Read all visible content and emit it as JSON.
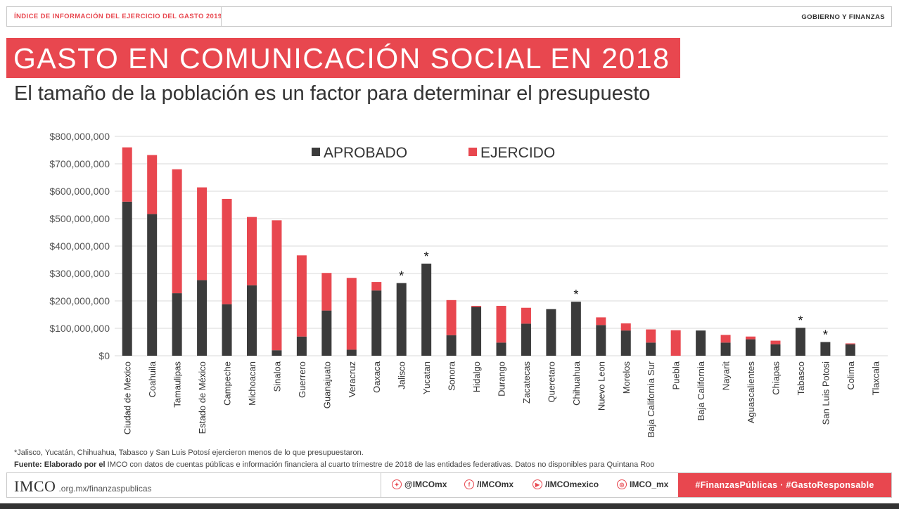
{
  "header": {
    "left": "ÍNDICE DE INFORMACIÓN DEL EJERCICIO DEL GASTO 2019",
    "right": "GOBIERNO Y FINANZAS"
  },
  "title": "GASTO EN COMUNICACIÓN SOCIAL EN 2018",
  "subtitle": "El tamaño de la población es un factor para determinar el presupuesto",
  "chart_data": {
    "type": "bar",
    "stacked": true,
    "categories": [
      "Ciudad de Mexico",
      "Coahuila",
      "Tamaulipas",
      "Estado de México",
      "Campeche",
      "Michoacan",
      "Sinaloa",
      "Guerrero",
      "Guanajuato",
      "Veracruz",
      "Oaxaca",
      "Jalisco",
      "Yucatan",
      "Sonora",
      "Hidalgo",
      "Durango",
      "Zacatecas",
      "Queretaro",
      "Chihuahua",
      "Nuevo Leon",
      "Morelos",
      "Baja California Sur",
      "Puebla",
      "Baja California",
      "Nayarit",
      "Aguascalientes",
      "Chiapas",
      "Tabasco",
      "San Luis Potosi",
      "Colima",
      "Tlaxcala"
    ],
    "series": [
      {
        "name": "APROBADO",
        "color": "#3b3b3b",
        "values": [
          562000000,
          517000000,
          228000000,
          276000000,
          188000000,
          257000000,
          20000000,
          70000000,
          165000000,
          22000000,
          238000000,
          265000000,
          336000000,
          75000000,
          178000000,
          48000000,
          117000000,
          170000000,
          197000000,
          112000000,
          92000000,
          48000000,
          0,
          92000000,
          48000000,
          60000000,
          42000000,
          102000000,
          50000000,
          42000000,
          0
        ]
      },
      {
        "name": "EJERCIDO",
        "color": "#e8474f",
        "values": [
          198000000,
          215000000,
          452000000,
          338000000,
          384000000,
          249000000,
          474000000,
          296000000,
          137000000,
          262000000,
          31000000,
          0,
          0,
          128000000,
          4000000,
          134000000,
          58000000,
          0,
          0,
          28000000,
          26000000,
          48000000,
          93000000,
          0,
          28000000,
          10000000,
          13000000,
          0,
          0,
          3000000,
          0
        ]
      }
    ],
    "asterisks": [
      "Jalisco",
      "Yucatan",
      "Chihuahua",
      "Tabasco",
      "San Luis Potosi"
    ],
    "asterisk_symbol": "*",
    "ylim": [
      0,
      800000000
    ],
    "yticks": [
      "$0",
      "$100,000,000",
      "$200,000,000",
      "$300,000,000",
      "$400,000,000",
      "$500,000,000",
      "$600,000,000",
      "$700,000,000",
      "$800,000,000"
    ],
    "legend_position": "top",
    "grid": true
  },
  "footnote": "*Jalisco, Yucatán, Chihuahua, Tabasco y San Luis Potosí ejercieron menos de lo que presupuestaron.",
  "source": {
    "label": "Fuente: Elaborado por el",
    "text": " IMCO con datos de cuentas públicas e información financiera al cuarto trimestre de 2018 de las entidades federativas. Datos no disponibles para Quintana Roo"
  },
  "footer": {
    "logo": "IMCO",
    "url": ".org.mx/finanzaspublicas",
    "twitter": "@IMCOmx",
    "facebook": "/IMCOmx",
    "youtube": "/IMCOmexico",
    "instagram": "IMCO_mx",
    "hashtags": "#FinanzasPúblicas · #GastoResponsable"
  },
  "colors": {
    "accent": "#e8474f",
    "dark": "#3b3b3b"
  }
}
